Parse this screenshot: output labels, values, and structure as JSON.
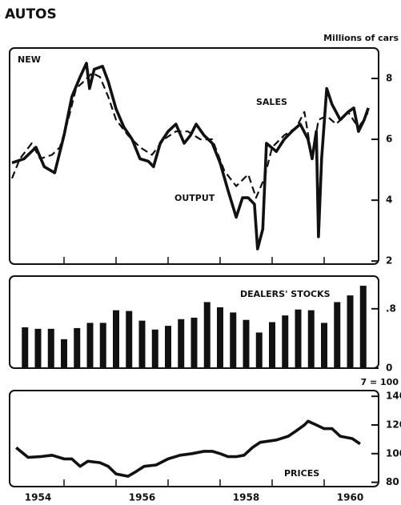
{
  "title": "AUTOS",
  "chart_data": [
    {
      "type": "line",
      "label": "NEW",
      "unit": "Millions of cars",
      "xlim": [
        1954,
        1961
      ],
      "xminor": [
        1955,
        1956,
        1957,
        1958,
        1959,
        1960
      ],
      "ylim": [
        1.9,
        9
      ],
      "yticks": [
        2,
        4,
        6,
        8
      ],
      "annotations": [
        "SALES",
        "OUTPUT"
      ],
      "series": [
        {
          "name": "OUTPUT",
          "color": "#111111",
          "style": "solid",
          "x": [
            1954.0,
            1954.23,
            1954.46,
            1954.62,
            1954.82,
            1955.0,
            1955.15,
            1955.31,
            1955.43,
            1955.49,
            1955.58,
            1955.74,
            1955.85,
            1956.0,
            1956.15,
            1956.31,
            1956.46,
            1956.62,
            1956.72,
            1956.85,
            1957.0,
            1957.15,
            1957.31,
            1957.43,
            1957.54,
            1957.69,
            1957.85,
            1958.0,
            1958.15,
            1958.31,
            1958.43,
            1958.54,
            1958.66,
            1958.72,
            1958.82,
            1958.89,
            1959.08,
            1959.23,
            1959.38,
            1959.54,
            1959.69,
            1959.77,
            1959.85,
            1959.89,
            1959.95,
            1960.05,
            1960.15,
            1960.31,
            1960.46,
            1960.57,
            1960.66,
            1960.77,
            1960.85
          ],
          "values": [
            5.23,
            5.36,
            5.74,
            5.1,
            4.9,
            6.13,
            7.4,
            8.05,
            8.5,
            7.67,
            8.3,
            8.4,
            7.9,
            7.0,
            6.4,
            6.0,
            5.36,
            5.28,
            5.1,
            5.87,
            6.26,
            6.5,
            5.87,
            6.13,
            6.5,
            6.13,
            5.87,
            5.23,
            4.33,
            3.44,
            4.08,
            4.08,
            3.87,
            2.4,
            3.05,
            5.87,
            5.6,
            6.0,
            6.26,
            6.5,
            6.0,
            5.36,
            6.26,
            2.8,
            5.36,
            7.67,
            7.15,
            6.64,
            6.9,
            7.03,
            6.26,
            6.64,
            7.03
          ]
        },
        {
          "name": "SALES",
          "color": "#111111",
          "style": "dashed",
          "x": [
            1954.0,
            1954.15,
            1954.38,
            1954.54,
            1954.77,
            1954.92,
            1955.08,
            1955.23,
            1955.38,
            1955.54,
            1955.69,
            1955.85,
            1956.0,
            1956.23,
            1956.46,
            1956.69,
            1956.92,
            1957.15,
            1957.38,
            1957.62,
            1957.85,
            1958.08,
            1958.31,
            1958.54,
            1958.69,
            1958.85,
            1959.0,
            1959.23,
            1959.46,
            1959.62,
            1959.77,
            1959.89,
            1960.05,
            1960.23,
            1960.46,
            1960.66,
            1960.85
          ],
          "values": [
            4.72,
            5.36,
            5.87,
            5.36,
            5.49,
            5.74,
            6.64,
            7.67,
            7.9,
            8.18,
            8.05,
            7.4,
            6.64,
            6.13,
            5.74,
            5.49,
            6.0,
            6.26,
            6.26,
            6.0,
            6.0,
            4.97,
            4.46,
            4.85,
            4.08,
            4.72,
            5.74,
            6.13,
            6.38,
            6.9,
            5.36,
            6.64,
            6.77,
            6.5,
            6.9,
            6.38,
            6.9
          ]
        }
      ]
    },
    {
      "type": "bar",
      "label": "DEALERS' STOCKS",
      "color": "#111111",
      "xlim": [
        1954,
        1961
      ],
      "xminor": [
        1955,
        1956,
        1957,
        1958,
        1959,
        1960
      ],
      "ylim": [
        0,
        1.24
      ],
      "yticks": [
        0,
        {
          "value": 0.8,
          "label": ".8"
        }
      ],
      "x": [
        1954.25,
        1954.5,
        1954.75,
        1955.0,
        1955.25,
        1955.5,
        1955.75,
        1956.0,
        1956.25,
        1956.5,
        1956.75,
        1957.0,
        1957.25,
        1957.5,
        1957.75,
        1958.0,
        1958.25,
        1958.5,
        1958.75,
        1959.0,
        1959.25,
        1959.5,
        1959.75,
        1960.0,
        1960.25,
        1960.5,
        1960.75
      ],
      "values": [
        0.55,
        0.53,
        0.53,
        0.39,
        0.54,
        0.61,
        0.61,
        0.78,
        0.77,
        0.64,
        0.52,
        0.57,
        0.66,
        0.68,
        0.89,
        0.82,
        0.75,
        0.65,
        0.48,
        0.62,
        0.71,
        0.79,
        0.78,
        0.61,
        0.89,
        0.98,
        1.11
      ]
    },
    {
      "type": "line",
      "label": "PRICES",
      "unit": "7 = 100",
      "xlim": [
        1954,
        1961
      ],
      "xminor": [
        1955,
        1956,
        1957,
        1958,
        1959,
        1960
      ],
      "xticks": [
        {
          "value": 1954.5,
          "label": "1954"
        },
        {
          "value": 1956.5,
          "label": "1956"
        },
        {
          "value": 1958.5,
          "label": "1958"
        },
        {
          "value": 1960.5,
          "label": "1960"
        }
      ],
      "ylim": [
        77,
        144
      ],
      "yticks": [
        80,
        100,
        120,
        140
      ],
      "series": [
        {
          "name": "PRICES",
          "color": "#111111",
          "style": "solid",
          "x": [
            1954.08,
            1954.31,
            1954.54,
            1954.77,
            1955.0,
            1955.15,
            1955.31,
            1955.46,
            1955.69,
            1955.85,
            1956.0,
            1956.23,
            1956.38,
            1956.54,
            1956.77,
            1957.0,
            1957.23,
            1957.46,
            1957.69,
            1957.85,
            1958.0,
            1958.15,
            1958.31,
            1958.46,
            1958.62,
            1958.77,
            1959.08,
            1959.31,
            1959.46,
            1959.62,
            1959.69,
            1959.85,
            1960.0,
            1960.15,
            1960.31,
            1960.54,
            1960.69
          ],
          "values": [
            104.2,
            97.4,
            97.9,
            98.9,
            96.3,
            96.3,
            91.1,
            94.7,
            93.7,
            91.1,
            85.8,
            84.2,
            87.4,
            91.1,
            92.1,
            96.3,
            98.9,
            100,
            101.6,
            101.6,
            100,
            97.9,
            97.9,
            98.9,
            104.2,
            107.9,
            109.5,
            112.1,
            115.8,
            120,
            122.6,
            120,
            117.4,
            117.4,
            112.1,
            110.5,
            106.8
          ]
        }
      ]
    }
  ]
}
